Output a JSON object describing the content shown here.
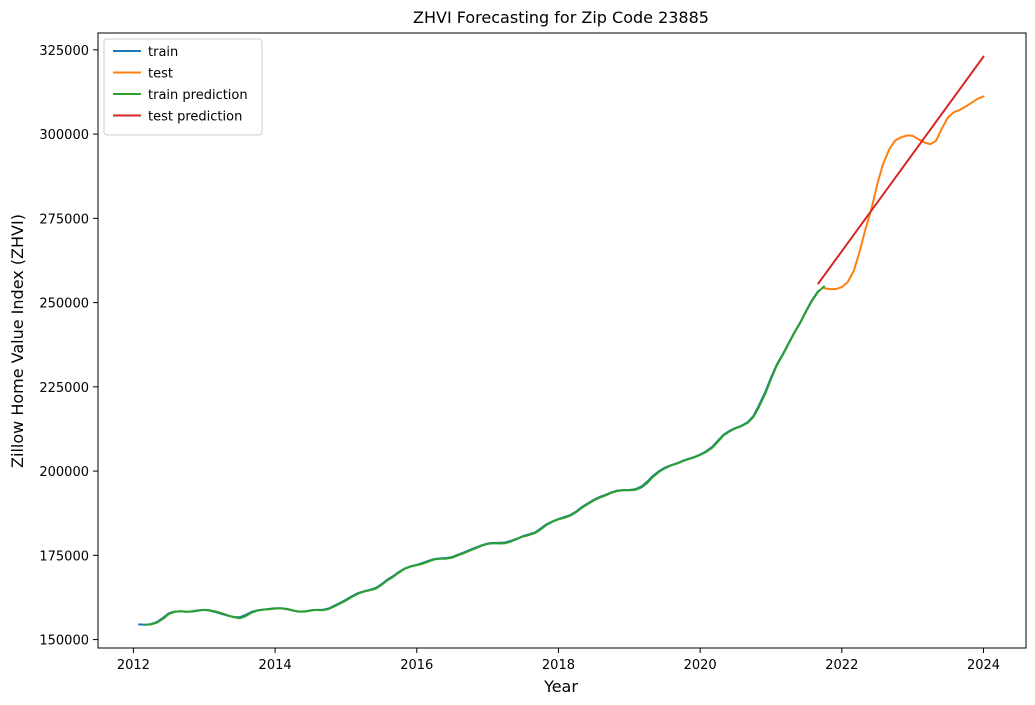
{
  "chart_data": {
    "type": "line",
    "title": "ZHVI Forecasting for Zip Code 23885",
    "xlabel": "Year",
    "ylabel": "Zillow Home Value Index (ZHVI)",
    "xlim": [
      2011.5,
      2024.6
    ],
    "ylim": [
      147500,
      330000
    ],
    "x_ticks": [
      2012,
      2014,
      2016,
      2018,
      2020,
      2022,
      2024
    ],
    "y_ticks": [
      150000,
      175000,
      200000,
      225000,
      250000,
      275000,
      300000,
      325000
    ],
    "x_tick_labels": [
      "2012",
      "2014",
      "2016",
      "2018",
      "2020",
      "2022",
      "2024"
    ],
    "y_tick_labels": [
      "150000",
      "175000",
      "200000",
      "225000",
      "250000",
      "275000",
      "300000",
      "325000"
    ],
    "grid": false,
    "legend_position": "top-left",
    "series": [
      {
        "name": "train",
        "color": "#1f77b4",
        "points": [
          [
            2012.08,
            154500
          ],
          [
            2012.17,
            154400
          ],
          [
            2012.25,
            154600
          ],
          [
            2012.33,
            155200
          ],
          [
            2012.42,
            156500
          ],
          [
            2012.5,
            157800
          ],
          [
            2012.58,
            158300
          ],
          [
            2012.67,
            158400
          ],
          [
            2012.75,
            158200
          ],
          [
            2012.83,
            158400
          ],
          [
            2012.92,
            158700
          ],
          [
            2013.0,
            158800
          ],
          [
            2013.08,
            158600
          ],
          [
            2013.17,
            158100
          ],
          [
            2013.25,
            157600
          ],
          [
            2013.33,
            157100
          ],
          [
            2013.42,
            156700
          ],
          [
            2013.5,
            156600
          ],
          [
            2013.58,
            157300
          ],
          [
            2013.67,
            158200
          ],
          [
            2013.75,
            158700
          ],
          [
            2013.83,
            158900
          ],
          [
            2013.92,
            159100
          ],
          [
            2014.0,
            159300
          ],
          [
            2014.08,
            159300
          ],
          [
            2014.17,
            159000
          ],
          [
            2014.25,
            158600
          ],
          [
            2014.33,
            158300
          ],
          [
            2014.42,
            158400
          ],
          [
            2014.5,
            158700
          ],
          [
            2014.58,
            158800
          ],
          [
            2014.67,
            158800
          ],
          [
            2014.75,
            159200
          ],
          [
            2014.83,
            160000
          ],
          [
            2014.92,
            160900
          ],
          [
            2015.0,
            161800
          ],
          [
            2015.08,
            162800
          ],
          [
            2015.17,
            163800
          ],
          [
            2015.25,
            164300
          ],
          [
            2015.33,
            164700
          ],
          [
            2015.42,
            165300
          ],
          [
            2015.5,
            166400
          ],
          [
            2015.58,
            167700
          ],
          [
            2015.67,
            168900
          ],
          [
            2015.75,
            170100
          ],
          [
            2015.83,
            171100
          ],
          [
            2015.92,
            171800
          ],
          [
            2016.0,
            172200
          ],
          [
            2016.08,
            172700
          ],
          [
            2016.17,
            173400
          ],
          [
            2016.25,
            173900
          ],
          [
            2016.33,
            174100
          ],
          [
            2016.42,
            174200
          ],
          [
            2016.5,
            174500
          ],
          [
            2016.58,
            175200
          ],
          [
            2016.67,
            175900
          ],
          [
            2016.75,
            176600
          ],
          [
            2016.83,
            177300
          ],
          [
            2016.92,
            178000
          ],
          [
            2017.0,
            178500
          ],
          [
            2017.08,
            178700
          ],
          [
            2017.17,
            178700
          ],
          [
            2017.25,
            178800
          ],
          [
            2017.33,
            179300
          ],
          [
            2017.42,
            180000
          ],
          [
            2017.5,
            180700
          ],
          [
            2017.58,
            181200
          ],
          [
            2017.67,
            181800
          ],
          [
            2017.75,
            183000
          ],
          [
            2017.83,
            184200
          ],
          [
            2017.92,
            185100
          ],
          [
            2018.0,
            185800
          ],
          [
            2018.08,
            186300
          ],
          [
            2018.17,
            187000
          ],
          [
            2018.25,
            188000
          ],
          [
            2018.33,
            189300
          ],
          [
            2018.42,
            190500
          ],
          [
            2018.5,
            191500
          ],
          [
            2018.58,
            192300
          ],
          [
            2018.67,
            193000
          ],
          [
            2018.75,
            193700
          ],
          [
            2018.83,
            194200
          ],
          [
            2018.92,
            194400
          ],
          [
            2019.0,
            194400
          ],
          [
            2019.08,
            194600
          ],
          [
            2019.17,
            195400
          ],
          [
            2019.25,
            196800
          ],
          [
            2019.33,
            198500
          ],
          [
            2019.42,
            200000
          ],
          [
            2019.5,
            201000
          ],
          [
            2019.58,
            201700
          ],
          [
            2019.67,
            202300
          ],
          [
            2019.75,
            203000
          ],
          [
            2019.83,
            203600
          ],
          [
            2019.92,
            204200
          ],
          [
            2020.0,
            204900
          ],
          [
            2020.08,
            205800
          ],
          [
            2020.17,
            207200
          ],
          [
            2020.25,
            209000
          ],
          [
            2020.33,
            210800
          ],
          [
            2020.42,
            212000
          ],
          [
            2020.5,
            212800
          ],
          [
            2020.58,
            213400
          ],
          [
            2020.67,
            214500
          ],
          [
            2020.75,
            216300
          ],
          [
            2020.83,
            219500
          ],
          [
            2020.92,
            223500
          ],
          [
            2021.0,
            227700
          ],
          [
            2021.08,
            231500
          ],
          [
            2021.17,
            234800
          ],
          [
            2021.25,
            238000
          ],
          [
            2021.33,
            241200
          ],
          [
            2021.42,
            244400
          ],
          [
            2021.5,
            247700
          ],
          [
            2021.58,
            250800
          ],
          [
            2021.67,
            253500
          ]
        ]
      },
      {
        "name": "test",
        "color": "#ff7f0e",
        "points": [
          [
            2021.75,
            254300
          ],
          [
            2021.83,
            254000
          ],
          [
            2021.92,
            254000
          ],
          [
            2022.0,
            254600
          ],
          [
            2022.08,
            256000
          ],
          [
            2022.17,
            259500
          ],
          [
            2022.25,
            265000
          ],
          [
            2022.33,
            271500
          ],
          [
            2022.42,
            278000
          ],
          [
            2022.5,
            285000
          ],
          [
            2022.58,
            291000
          ],
          [
            2022.67,
            295500
          ],
          [
            2022.75,
            298000
          ],
          [
            2022.83,
            299000
          ],
          [
            2022.92,
            299600
          ],
          [
            2023.0,
            299500
          ],
          [
            2023.08,
            298500
          ],
          [
            2023.17,
            297500
          ],
          [
            2023.25,
            297000
          ],
          [
            2023.33,
            298000
          ],
          [
            2023.42,
            302000
          ],
          [
            2023.5,
            305000
          ],
          [
            2023.58,
            306500
          ],
          [
            2023.67,
            307200
          ],
          [
            2023.75,
            308200
          ],
          [
            2023.83,
            309300
          ],
          [
            2023.92,
            310500
          ],
          [
            2024.0,
            311200
          ]
        ]
      },
      {
        "name": "train prediction",
        "color": "#2ca02c",
        "points": [
          [
            2012.17,
            154400
          ],
          [
            2012.25,
            154500
          ],
          [
            2012.33,
            155000
          ],
          [
            2012.42,
            156200
          ],
          [
            2012.5,
            157600
          ],
          [
            2012.58,
            158200
          ],
          [
            2012.67,
            158400
          ],
          [
            2012.75,
            158300
          ],
          [
            2012.83,
            158300
          ],
          [
            2012.92,
            158600
          ],
          [
            2013.0,
            158800
          ],
          [
            2013.08,
            158700
          ],
          [
            2013.17,
            158300
          ],
          [
            2013.25,
            157800
          ],
          [
            2013.33,
            157200
          ],
          [
            2013.42,
            156600
          ],
          [
            2013.5,
            156300
          ],
          [
            2013.58,
            156900
          ],
          [
            2013.67,
            158000
          ],
          [
            2013.75,
            158600
          ],
          [
            2013.83,
            158900
          ],
          [
            2013.92,
            159000
          ],
          [
            2014.0,
            159200
          ],
          [
            2014.08,
            159300
          ],
          [
            2014.17,
            159100
          ],
          [
            2014.25,
            158700
          ],
          [
            2014.33,
            158300
          ],
          [
            2014.42,
            158300
          ],
          [
            2014.5,
            158600
          ],
          [
            2014.58,
            158800
          ],
          [
            2014.67,
            158700
          ],
          [
            2014.75,
            159000
          ],
          [
            2014.83,
            159800
          ],
          [
            2014.92,
            160700
          ],
          [
            2015.0,
            161600
          ],
          [
            2015.08,
            162600
          ],
          [
            2015.17,
            163600
          ],
          [
            2015.25,
            164200
          ],
          [
            2015.33,
            164600
          ],
          [
            2015.42,
            165100
          ],
          [
            2015.5,
            166200
          ],
          [
            2015.58,
            167500
          ],
          [
            2015.67,
            168700
          ],
          [
            2015.75,
            169900
          ],
          [
            2015.83,
            171000
          ],
          [
            2015.92,
            171700
          ],
          [
            2016.0,
            172100
          ],
          [
            2016.08,
            172500
          ],
          [
            2016.17,
            173200
          ],
          [
            2016.25,
            173800
          ],
          [
            2016.33,
            174000
          ],
          [
            2016.42,
            174000
          ],
          [
            2016.5,
            174300
          ],
          [
            2016.58,
            175000
          ],
          [
            2016.67,
            175700
          ],
          [
            2016.75,
            176400
          ],
          [
            2016.83,
            177100
          ],
          [
            2016.92,
            177900
          ],
          [
            2017.0,
            178400
          ],
          [
            2017.08,
            178600
          ],
          [
            2017.17,
            178500
          ],
          [
            2017.25,
            178600
          ],
          [
            2017.33,
            179100
          ],
          [
            2017.42,
            179900
          ],
          [
            2017.5,
            180600
          ],
          [
            2017.58,
            181000
          ],
          [
            2017.67,
            181600
          ],
          [
            2017.75,
            182700
          ],
          [
            2017.83,
            184000
          ],
          [
            2017.92,
            185000
          ],
          [
            2018.0,
            185700
          ],
          [
            2018.08,
            186100
          ],
          [
            2018.17,
            186800
          ],
          [
            2018.25,
            187800
          ],
          [
            2018.33,
            189100
          ],
          [
            2018.42,
            190300
          ],
          [
            2018.5,
            191300
          ],
          [
            2018.58,
            192100
          ],
          [
            2018.67,
            192800
          ],
          [
            2018.75,
            193600
          ],
          [
            2018.83,
            194100
          ],
          [
            2018.92,
            194300
          ],
          [
            2019.0,
            194300
          ],
          [
            2019.08,
            194400
          ],
          [
            2019.17,
            195100
          ],
          [
            2019.25,
            196400
          ],
          [
            2019.33,
            198200
          ],
          [
            2019.42,
            199800
          ],
          [
            2019.5,
            200800
          ],
          [
            2019.58,
            201600
          ],
          [
            2019.67,
            202200
          ],
          [
            2019.75,
            202900
          ],
          [
            2019.83,
            203500
          ],
          [
            2019.92,
            204100
          ],
          [
            2020.0,
            204800
          ],
          [
            2020.08,
            205600
          ],
          [
            2020.17,
            206900
          ],
          [
            2020.25,
            208700
          ],
          [
            2020.33,
            210600
          ],
          [
            2020.42,
            211800
          ],
          [
            2020.5,
            212700
          ],
          [
            2020.58,
            213300
          ],
          [
            2020.67,
            214300
          ],
          [
            2020.75,
            216000
          ],
          [
            2020.83,
            219000
          ],
          [
            2020.92,
            223000
          ],
          [
            2021.0,
            227300
          ],
          [
            2021.08,
            231200
          ],
          [
            2021.17,
            234600
          ],
          [
            2021.25,
            237800
          ],
          [
            2021.33,
            241000
          ],
          [
            2021.42,
            244200
          ],
          [
            2021.5,
            247500
          ],
          [
            2021.58,
            250600
          ],
          [
            2021.67,
            253300
          ],
          [
            2021.75,
            254800
          ]
        ]
      },
      {
        "name": "test prediction",
        "color": "#d62728",
        "points": [
          [
            2021.67,
            255700
          ],
          [
            2024.0,
            323000
          ]
        ]
      }
    ]
  }
}
